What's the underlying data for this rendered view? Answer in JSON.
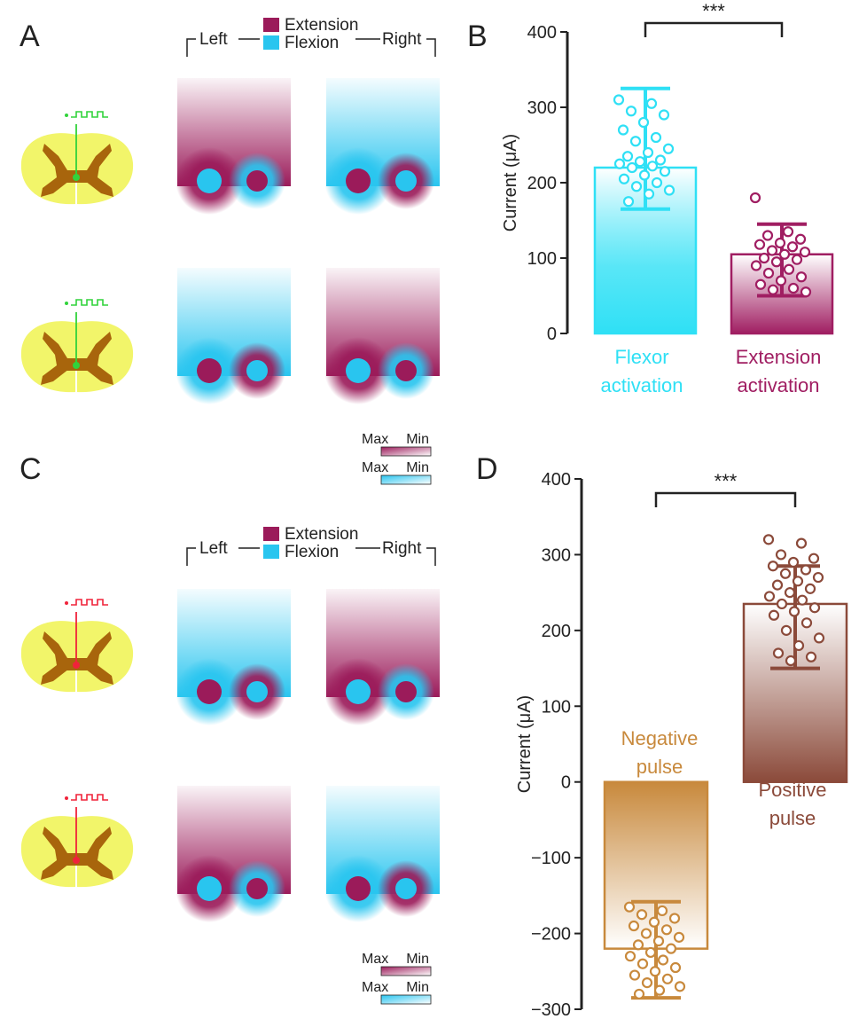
{
  "panels": {
    "a": {
      "letter": "A",
      "legend": {
        "extension": "Extension",
        "flexion": "Flexion",
        "left": "Left",
        "right": "Right"
      },
      "rows": [
        {
          "electrode": "green",
          "left_gradient": "extension",
          "right_gradient": "flexion"
        },
        {
          "electrode": "green",
          "left_gradient": "flexion",
          "right_gradient": "extension"
        }
      ],
      "scale_bars": {
        "max": "Max",
        "min": "Min"
      }
    },
    "b": {
      "letter": "B"
    },
    "c": {
      "letter": "C",
      "legend": {
        "extension": "Extension",
        "flexion": "Flexion",
        "left": "Left",
        "right": "Right"
      },
      "rows": [
        {
          "electrode": "red",
          "left_gradient": "flexion",
          "right_gradient": "extension"
        },
        {
          "electrode": "red",
          "left_gradient": "extension",
          "right_gradient": "flexion"
        }
      ],
      "scale_bars": {
        "max": "Max",
        "min": "Min"
      }
    },
    "d": {
      "letter": "D"
    }
  },
  "colors": {
    "extension": "#9b1b5a",
    "flexion": "#29c5ef",
    "cyan_bar": "#2fe0f5",
    "magenta_bar": "#a01e62",
    "orange_bar": "#c8893c",
    "brown_bar": "#8b4a3a",
    "cord_yellow": "#f2f56a",
    "grey_matter": "#a8650c",
    "electrode_green": "#31d33b",
    "electrode_red": "#f0233a"
  },
  "chart_data": [
    {
      "type": "bar",
      "panel": "B",
      "ylabel": "Current (μA)",
      "ylim": [
        0,
        400
      ],
      "yticks": [
        0,
        100,
        200,
        300,
        400
      ],
      "categories": [
        "Flexor activation",
        "Extension activation"
      ],
      "category_lines": [
        [
          "Flexor",
          "activation"
        ],
        [
          "Extension",
          "activation"
        ]
      ],
      "values": [
        220,
        105
      ],
      "error": [
        [
          165,
          325
        ],
        [
          50,
          145
        ]
      ],
      "points": [
        [
          310,
          305,
          295,
          290,
          280,
          270,
          260,
          255,
          245,
          240,
          235,
          230,
          228,
          225,
          222,
          220,
          215,
          210,
          205,
          200,
          195,
          190,
          185,
          175
        ],
        [
          180,
          135,
          130,
          125,
          120,
          118,
          115,
          110,
          108,
          105,
          100,
          98,
          95,
          90,
          85,
          80,
          75,
          70,
          65,
          60,
          58,
          55
        ]
      ],
      "significance": "***"
    },
    {
      "type": "bar",
      "panel": "D",
      "ylabel": "Current (μA)",
      "ylim": [
        -300,
        400
      ],
      "yticks": [
        -300,
        -200,
        -100,
        0,
        100,
        200,
        300,
        400
      ],
      "categories": [
        "Negative pulse",
        "Positive pulse"
      ],
      "category_lines": [
        [
          "Negative",
          "pulse"
        ],
        [
          "Positive",
          "pulse"
        ]
      ],
      "values": [
        -220,
        235
      ],
      "error": [
        [
          -285,
          -158
        ],
        [
          150,
          285
        ]
      ],
      "points": [
        [
          -165,
          -170,
          -175,
          -180,
          -185,
          -190,
          -195,
          -200,
          -205,
          -210,
          -215,
          -220,
          -225,
          -230,
          -235,
          -240,
          -245,
          -250,
          -255,
          -260,
          -265,
          -270,
          -275,
          -280
        ],
        [
          320,
          315,
          300,
          295,
          290,
          285,
          280,
          275,
          270,
          265,
          260,
          255,
          250,
          245,
          240,
          235,
          230,
          225,
          220,
          210,
          200,
          190,
          180,
          170,
          165,
          160
        ]
      ],
      "significance": "***"
    }
  ]
}
